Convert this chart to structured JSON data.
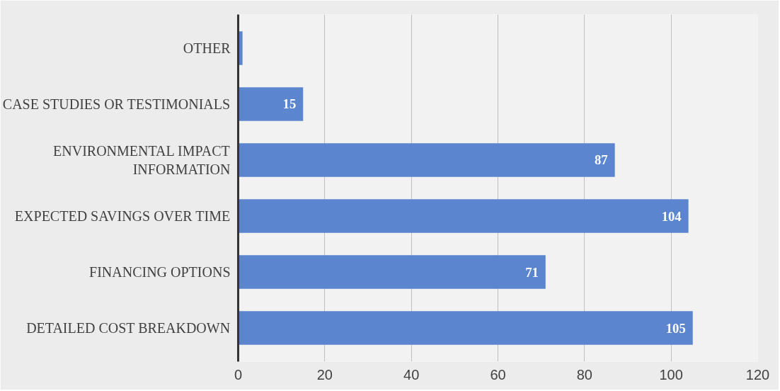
{
  "chart_data": {
    "type": "bar",
    "orientation": "horizontal",
    "categories": [
      "OTHER",
      "CASE STUDIES OR TESTIMONIALS",
      "ENVIRONMENTAL IMPACT INFORMATION",
      "EXPECTED SAVINGS OVER TIME",
      "FINANCING OPTIONS",
      "DETAILED COST BREAKDOWN"
    ],
    "values": [
      1,
      15,
      87,
      104,
      71,
      105
    ],
    "value_labels": [
      null,
      "15",
      "87",
      "104",
      "71",
      "105"
    ],
    "color": "#5b86cf",
    "xlim": [
      0,
      120
    ],
    "xticks": [
      0,
      20,
      40,
      60,
      80,
      100,
      120
    ],
    "grid": "x"
  }
}
